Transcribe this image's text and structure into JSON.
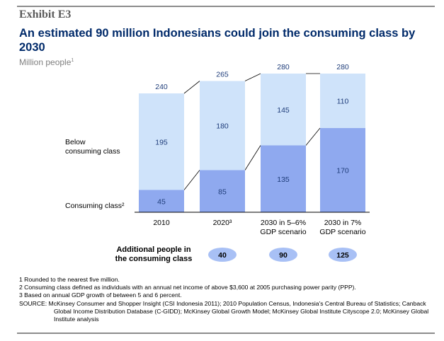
{
  "header": {
    "exhibit": "Exhibit E3",
    "title": "An estimated 90 million Indonesians could join the consuming class by 2030",
    "subtitle": "Million people",
    "subtitle_sup": "1"
  },
  "colors": {
    "below": "#cfe3fa",
    "consuming": "#8fa9ef",
    "pill": "#a8c0f5",
    "text_blue": "#1f3d7a",
    "rule": "#8c8c8c"
  },
  "chart_data": {
    "type": "bar",
    "stacked": true,
    "categories": [
      {
        "line1": "2010",
        "line2": ""
      },
      {
        "line1": "2020³",
        "line2": ""
      },
      {
        "line1": "2030 in 5–6%",
        "line2": "GDP scenario"
      },
      {
        "line1": "2030 in 7%",
        "line2": "GDP scenario"
      }
    ],
    "series": [
      {
        "name": "Consuming class²",
        "values": [
          45,
          85,
          135,
          170
        ]
      },
      {
        "name": "Below consuming class",
        "values": [
          195,
          180,
          145,
          110
        ]
      }
    ],
    "totals": [
      240,
      265,
      280,
      280
    ],
    "legend_labels": {
      "below_line1": "Below",
      "below_line2": "consuming class",
      "consuming": "Consuming class²"
    },
    "additional_label_line1": "Additional people in",
    "additional_label_line2": "the consuming class",
    "additional_values": [
      40,
      90,
      125
    ]
  },
  "notes": {
    "note1": "1 Rounded to the nearest five million.",
    "note2": "2 Consuming class defined as individuals with an annual net income of above $3,600 at 2005 purchasing power parity (PPP).",
    "note3": "3 Based on annual GDP growth of between 5 and 6 percent.",
    "source": "SOURCE: McKinsey Consumer and Shopper Insight (CSI Indonesia 2011); 2010 Population Census, Indonesia's Central Bureau of Statistics; Canback Global Income Distribution Database (C-GIDD); McKinsey Global Growth Model; McKinsey Global Institute Cityscope 2.0; McKinsey Global Institute analysis"
  }
}
